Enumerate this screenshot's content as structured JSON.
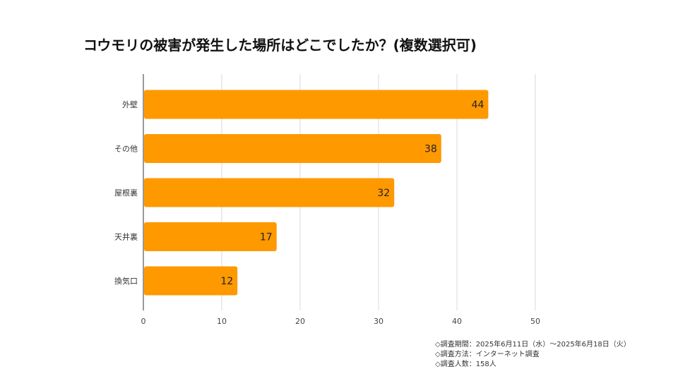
{
  "chart_data": {
    "type": "bar",
    "orientation": "horizontal",
    "title": "コウモリの被害が発生した場所はどこでしたか？(複数選択可)",
    "categories": [
      "外壁",
      "その他",
      "屋根裏",
      "天井裏",
      "換気口"
    ],
    "values": [
      44,
      38,
      32,
      17,
      12
    ],
    "xlim": [
      0,
      50
    ],
    "xticks": [
      0,
      10,
      20,
      30,
      40,
      50
    ],
    "xlabel": "",
    "ylabel": "",
    "grid": true,
    "bar_color": "#ff9900",
    "data_labels": true
  },
  "notes": {
    "period": "◇調査期間：2025年6月11日（水）～2025年6月18日（火）",
    "method": "◇調査方法：インターネット調査",
    "respondents": "◇調査人数：158人"
  }
}
